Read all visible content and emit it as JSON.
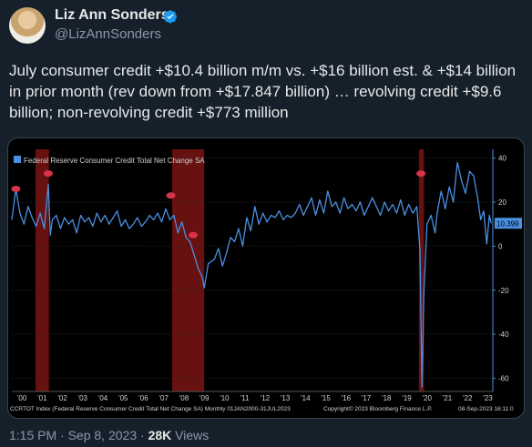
{
  "author": {
    "name": "Liz Ann Sonders",
    "handle": "@LizAnnSonders"
  },
  "tweet": {
    "text": "July consumer credit +$10.4 billion m/m vs. +$16 billion est. & +$14 billion in prior month (rev down from +$17.847 billion) … revolving credit +$9.6 billion; non-revolving credit +$773 million"
  },
  "meta": {
    "time": "1:15 PM",
    "sep1": " · ",
    "date": "Sep 8, 2023",
    "sep2": " · ",
    "views_count": "28K",
    "views_label": " Views"
  },
  "colors": {
    "background": "#15202b",
    "series": "#4a90e2",
    "recession": "#7a1414",
    "last_value_box": "#4a90e2"
  },
  "chart_data": {
    "type": "line",
    "legend": "Federal Reserve Consumer Credit Total Net Change SA",
    "legend_position": "top-left",
    "x_ticks": [
      "'00",
      "'01",
      "'02",
      "'03",
      "'04",
      "'05",
      "'06",
      "'07",
      "'08",
      "'09",
      "'10",
      "'11",
      "'12",
      "'13",
      "'14",
      "'15",
      "'16",
      "'17",
      "'18",
      "'19",
      "'20",
      "'21",
      "'22",
      "'23"
    ],
    "y_ticks": [
      40,
      20,
      0,
      -20,
      -40,
      -60
    ],
    "ylim": [
      -66,
      44
    ],
    "xlim": [
      2000.0,
      2023.75
    ],
    "last_value_label": "10.399",
    "footer_left": "CCRTOT Index (Federal Reserve Consumer Credit Total Net Change SA)  Monthly 01JAN2000-31JUL2023",
    "footer_right": "Copyright© 2023 Bloomberg Finance L.P.",
    "footer_date": "08-Sep-2023 16:11:0",
    "recessions": [
      [
        2001.17,
        2001.83
      ],
      [
        2007.92,
        2009.5
      ],
      [
        2020.1,
        2020.35
      ]
    ],
    "series": [
      {
        "name": "Federal Reserve Consumer Credit Total Net Change SA",
        "points": [
          [
            2000.0,
            12
          ],
          [
            2000.2,
            26
          ],
          [
            2000.4,
            15
          ],
          [
            2000.6,
            10
          ],
          [
            2000.8,
            18
          ],
          [
            2001.0,
            13
          ],
          [
            2001.2,
            9
          ],
          [
            2001.4,
            15
          ],
          [
            2001.6,
            8
          ],
          [
            2001.8,
            28
          ],
          [
            2001.9,
            5
          ],
          [
            2002.0,
            12
          ],
          [
            2002.2,
            14
          ],
          [
            2002.4,
            8
          ],
          [
            2002.6,
            13
          ],
          [
            2002.8,
            10
          ],
          [
            2003.0,
            12
          ],
          [
            2003.2,
            6
          ],
          [
            2003.4,
            14
          ],
          [
            2003.6,
            11
          ],
          [
            2003.8,
            13
          ],
          [
            2004.0,
            9
          ],
          [
            2004.2,
            15
          ],
          [
            2004.4,
            11
          ],
          [
            2004.6,
            14
          ],
          [
            2004.8,
            10
          ],
          [
            2005.0,
            13
          ],
          [
            2005.2,
            16
          ],
          [
            2005.4,
            9
          ],
          [
            2005.6,
            12
          ],
          [
            2005.8,
            8
          ],
          [
            2006.0,
            10
          ],
          [
            2006.2,
            13
          ],
          [
            2006.4,
            9
          ],
          [
            2006.6,
            11
          ],
          [
            2006.8,
            14
          ],
          [
            2007.0,
            12
          ],
          [
            2007.2,
            15
          ],
          [
            2007.4,
            11
          ],
          [
            2007.6,
            17
          ],
          [
            2007.8,
            12
          ],
          [
            2008.0,
            14
          ],
          [
            2008.2,
            6
          ],
          [
            2008.4,
            11
          ],
          [
            2008.6,
            4
          ],
          [
            2008.8,
            2
          ],
          [
            2009.0,
            -4
          ],
          [
            2009.2,
            -10
          ],
          [
            2009.4,
            -14
          ],
          [
            2009.5,
            -19
          ],
          [
            2009.7,
            -8
          ],
          [
            2010.0,
            -6
          ],
          [
            2010.2,
            -1
          ],
          [
            2010.4,
            -9
          ],
          [
            2010.6,
            -3
          ],
          [
            2010.8,
            4
          ],
          [
            2011.0,
            2
          ],
          [
            2011.2,
            8
          ],
          [
            2011.4,
            0
          ],
          [
            2011.6,
            13
          ],
          [
            2011.8,
            7
          ],
          [
            2012.0,
            18
          ],
          [
            2012.2,
            10
          ],
          [
            2012.4,
            15
          ],
          [
            2012.6,
            11
          ],
          [
            2012.8,
            14
          ],
          [
            2013.0,
            13
          ],
          [
            2013.2,
            16
          ],
          [
            2013.4,
            12
          ],
          [
            2013.6,
            14
          ],
          [
            2013.8,
            13
          ],
          [
            2014.0,
            15
          ],
          [
            2014.2,
            19
          ],
          [
            2014.4,
            14
          ],
          [
            2014.6,
            18
          ],
          [
            2014.8,
            22
          ],
          [
            2015.0,
            14
          ],
          [
            2015.2,
            21
          ],
          [
            2015.4,
            15
          ],
          [
            2015.6,
            25
          ],
          [
            2015.8,
            18
          ],
          [
            2016.0,
            20
          ],
          [
            2016.2,
            15
          ],
          [
            2016.4,
            22
          ],
          [
            2016.6,
            17
          ],
          [
            2016.8,
            19
          ],
          [
            2017.0,
            16
          ],
          [
            2017.2,
            20
          ],
          [
            2017.4,
            14
          ],
          [
            2017.6,
            18
          ],
          [
            2017.8,
            22
          ],
          [
            2018.0,
            18
          ],
          [
            2018.2,
            14
          ],
          [
            2018.4,
            20
          ],
          [
            2018.6,
            16
          ],
          [
            2018.8,
            19
          ],
          [
            2019.0,
            15
          ],
          [
            2019.2,
            21
          ],
          [
            2019.4,
            14
          ],
          [
            2019.6,
            19
          ],
          [
            2019.8,
            15
          ],
          [
            2020.0,
            18
          ],
          [
            2020.15,
            -2
          ],
          [
            2020.25,
            -64
          ],
          [
            2020.35,
            -20
          ],
          [
            2020.5,
            10
          ],
          [
            2020.7,
            14
          ],
          [
            2020.9,
            6
          ],
          [
            2021.0,
            15
          ],
          [
            2021.2,
            25
          ],
          [
            2021.4,
            17
          ],
          [
            2021.6,
            27
          ],
          [
            2021.8,
            20
          ],
          [
            2022.0,
            38
          ],
          [
            2022.2,
            30
          ],
          [
            2022.4,
            24
          ],
          [
            2022.6,
            34
          ],
          [
            2022.8,
            32
          ],
          [
            2023.0,
            22
          ],
          [
            2023.15,
            12
          ],
          [
            2023.3,
            16
          ],
          [
            2023.45,
            1
          ],
          [
            2023.58,
            14
          ],
          [
            2023.67,
            10.4
          ]
        ]
      }
    ]
  }
}
